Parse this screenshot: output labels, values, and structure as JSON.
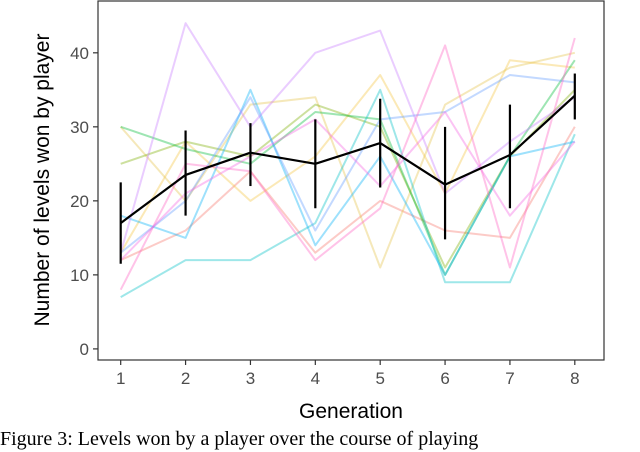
{
  "chart_data": {
    "type": "line",
    "xlabel": "Generation",
    "ylabel": "Number of levels won by player",
    "x": [
      1,
      2,
      3,
      4,
      5,
      6,
      7,
      8
    ],
    "xlim": [
      0.65,
      8.45
    ],
    "ylim": [
      -1.5,
      47
    ],
    "yticks": [
      0,
      10,
      20,
      30,
      40
    ],
    "grid": false,
    "legend": "none",
    "mean_series": {
      "color": "#000000",
      "values": [
        17,
        23.5,
        26.5,
        25,
        27.8,
        22.2,
        26.2,
        34.2
      ],
      "error_low": [
        11.5,
        18,
        22,
        19,
        21.8,
        14.8,
        19,
        31
      ],
      "error_high": [
        22.5,
        29.5,
        30.5,
        31,
        33.8,
        30,
        33,
        37.2
      ]
    },
    "player_series": [
      {
        "color": "#f8766d",
        "values": [
          12,
          16,
          24,
          13,
          20,
          16,
          15,
          30
        ]
      },
      {
        "color": "#f4c542",
        "values": [
          13,
          28,
          20,
          26,
          37,
          21,
          39,
          38
        ]
      },
      {
        "color": "#e6c24a",
        "values": [
          30,
          20,
          33,
          34,
          11,
          33,
          38,
          40
        ]
      },
      {
        "color": "#7cae00",
        "values": [
          25,
          28,
          26,
          33,
          30,
          11,
          26,
          35
        ]
      },
      {
        "color": "#00ba38",
        "values": [
          30,
          27,
          25,
          32,
          31,
          10,
          26,
          39
        ]
      },
      {
        "color": "#00bfc4",
        "values": [
          7,
          12,
          12,
          17,
          35,
          9,
          9,
          29
        ]
      },
      {
        "color": "#00b0f6",
        "values": [
          18,
          15,
          35,
          14,
          26,
          10,
          26,
          28
        ]
      },
      {
        "color": "#619cff",
        "values": [
          13,
          20,
          34,
          16,
          31,
          32,
          37,
          36
        ]
      },
      {
        "color": "#c77cff",
        "values": [
          13,
          44,
          30,
          40,
          43,
          21,
          28,
          34
        ]
      },
      {
        "color": "#ff61c3",
        "values": [
          8,
          25,
          24,
          12,
          19,
          41,
          11,
          42
        ]
      },
      {
        "color": "#f564e3",
        "values": [
          12,
          21,
          26,
          31,
          22,
          32,
          18,
          28
        ]
      }
    ]
  },
  "caption": "Figure 3: Levels won by a player over the course of playing"
}
